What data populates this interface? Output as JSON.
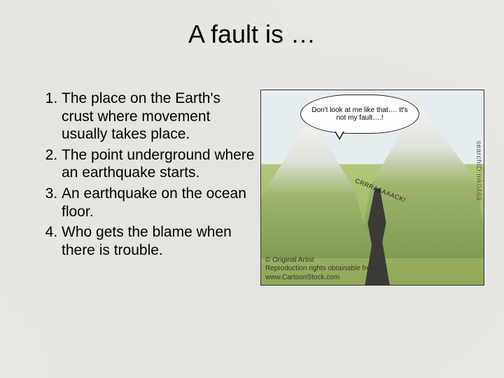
{
  "title": "A fault is …",
  "definitions": [
    "The place on the Earth's crust where movement usually takes place.",
    "The point underground where an earthquake starts.",
    "An earthquake on the ocean floor.",
    "Who gets the blame when there is trouble."
  ],
  "cartoon": {
    "speech": "Don't look at me like that…. It's not my fault….!",
    "crack_sfx": "CRRRAAAAACK!",
    "watermark": "searchID:mk0469",
    "credit_line1": "© Original Artist",
    "credit_line2": "Reproduction rights obtainable from",
    "credit_line3": "www.CartoonStock.com",
    "colors": {
      "sky": "#e6edf0",
      "grass_top": "#b3c77a",
      "grass_bottom": "#8fa857",
      "mountain_snow": "#f5f5f2",
      "mountain_rock": "#dfe3da",
      "mountain_green": "#9fb56e",
      "crack": "#3b3b34",
      "bubble_bg": "#fefefe",
      "border": "#333333"
    }
  },
  "layout": {
    "slide_w": 720,
    "slide_h": 540,
    "title_fontsize": 36,
    "list_fontsize": 21,
    "background": "#e8e8e4"
  }
}
